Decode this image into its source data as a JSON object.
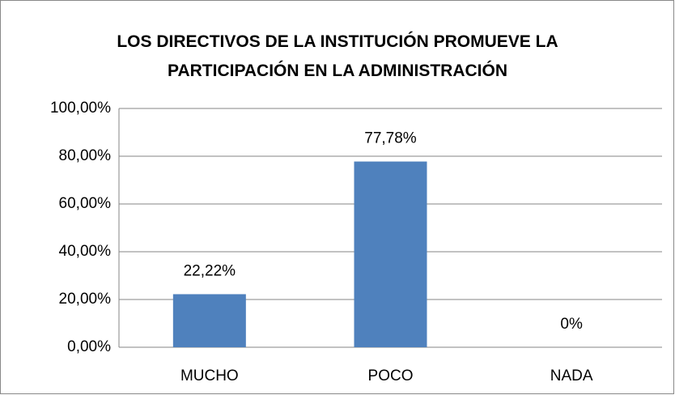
{
  "chart_data": {
    "type": "bar",
    "title": "LOS DIRECTIVOS DE LA INSTITUCIÓN PROMUEVE LA PARTICIPACIÓN EN LA ADMINISTRACIÓN",
    "categories": [
      "MUCHO",
      "POCO",
      "NADA"
    ],
    "values": [
      22.22,
      77.78,
      0
    ],
    "value_labels": [
      "22,22%",
      "77,78%",
      "0%"
    ],
    "color": "#4f81bd",
    "ylim": [
      0,
      100
    ],
    "yticks": [
      {
        "value": 0,
        "label": "0,00%"
      },
      {
        "value": 20,
        "label": "20,00%"
      },
      {
        "value": 40,
        "label": "40,00%"
      },
      {
        "value": 60,
        "label": "60,00%"
      },
      {
        "value": 80,
        "label": "80,00%"
      },
      {
        "value": 100,
        "label": "100,00%"
      }
    ],
    "grid": true
  }
}
